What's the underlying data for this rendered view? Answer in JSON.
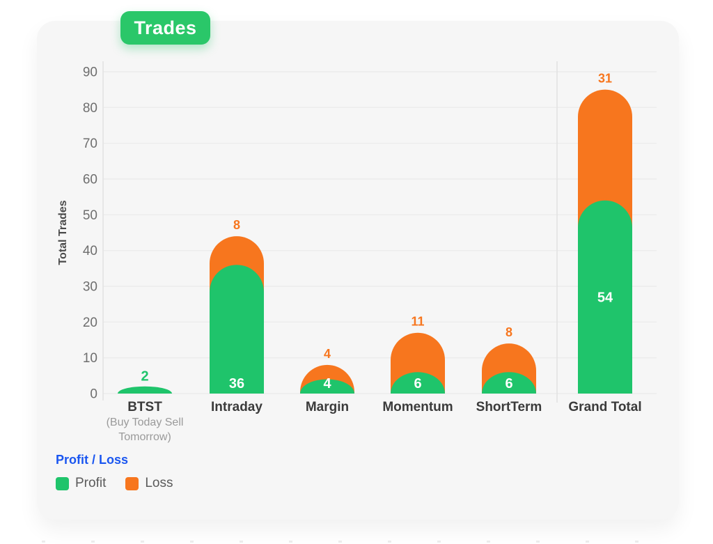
{
  "title_badge": "Trades",
  "colors": {
    "profit": "#1fc46b",
    "loss": "#f7761e",
    "badge": "#2ac769",
    "legend_title": "#1a56f0",
    "grid": "#ececec",
    "axis_line": "#e0e0e0",
    "tick_text": "#6e6e6e",
    "category_text": "#3b3b3b",
    "sublabel_text": "#9a9a9a",
    "axis_title_text": "#4a4a4a",
    "card_bg": "#f6f6f6"
  },
  "legend": {
    "title": "Profit / Loss",
    "items": [
      {
        "label": "Profit",
        "color_key": "profit"
      },
      {
        "label": "Loss",
        "color_key": "loss"
      }
    ]
  },
  "chart_data": {
    "type": "bar",
    "stacked": true,
    "title": "Trades",
    "xlabel": "",
    "ylabel": "Total Trades",
    "ylim": [
      0,
      90
    ],
    "y_ticks": [
      0,
      10,
      20,
      30,
      40,
      50,
      60,
      70,
      80,
      90
    ],
    "grid": true,
    "legend_position": "bottom-left",
    "categories": [
      {
        "label": "BTST",
        "sublabel_lines": [
          "(Buy Today Sell",
          "Tomorrow)"
        ]
      },
      {
        "label": "Intraday"
      },
      {
        "label": "Margin"
      },
      {
        "label": "Momentum"
      },
      {
        "label": "ShortTerm"
      },
      {
        "label": "Grand Total"
      }
    ],
    "series": [
      {
        "name": "Profit",
        "color_key": "profit",
        "values": [
          2,
          36,
          4,
          6,
          6,
          54
        ]
      },
      {
        "name": "Loss",
        "color_key": "loss",
        "values": [
          null,
          8,
          4,
          11,
          8,
          31
        ]
      }
    ]
  }
}
